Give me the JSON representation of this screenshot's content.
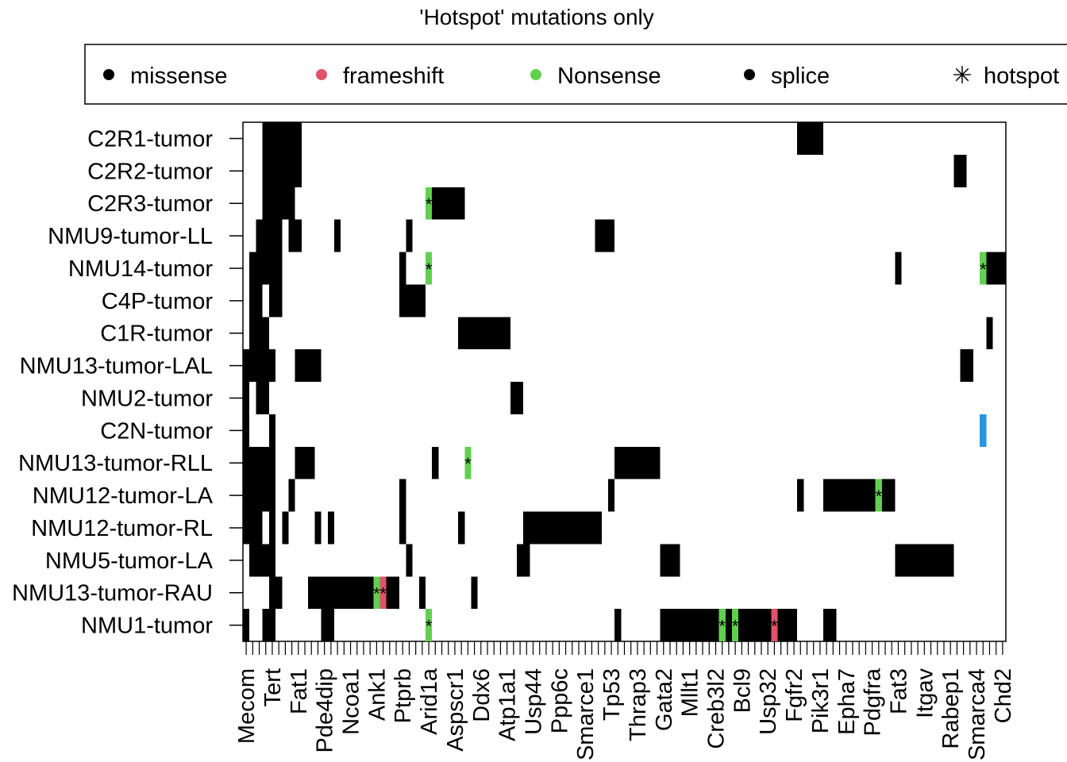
{
  "chart_data": {
    "type": "heatmap",
    "title": "'Hotspot' mutations only",
    "legend": {
      "placement": "top",
      "entries": [
        {
          "label": "missense",
          "symbol": "dot",
          "color": "#000000"
        },
        {
          "label": "frameshift",
          "symbol": "dot",
          "color": "#DF536B"
        },
        {
          "label": "Nonsense",
          "symbol": "dot",
          "color": "#61D04F"
        },
        {
          "label": "splice",
          "symbol": "dot",
          "color": "#000000"
        },
        {
          "label": "hotspot",
          "symbol": "asterisk",
          "color": "#000000"
        }
      ]
    },
    "colors": {
      "missense": "#000000",
      "frameshift": "#DF536B",
      "nonsense": "#61D04F",
      "splice": "#000000",
      "other": "#2297E6"
    },
    "samples": [
      "C2R1-tumor",
      "C2R2-tumor",
      "C2R3-tumor",
      "NMU9-tumor-LL",
      "NMU14-tumor",
      "C4P-tumor",
      "C1R-tumor",
      "NMU13-tumor-LAL",
      "NMU2-tumor",
      "C2N-tumor",
      "NMU13-tumor-RLL",
      "NMU12-tumor-LA",
      "NMU12-tumor-RL",
      "NMU5-tumor-LA",
      "NMU13-tumor-RAU",
      "NMU1-tumor"
    ],
    "gene_labels": [
      "Mecom",
      "Tert",
      "Fat1",
      "Pde4dip",
      "Ncoa1",
      "Ank1",
      "Ptprb",
      "Arid1a",
      "Aspscr1",
      "Ddx6",
      "Atp1a1",
      "Usp44",
      "Ppp6c",
      "Smarce1",
      "Tp53",
      "Thrap3",
      "Gata2",
      "Mllt1",
      "Creb3l2",
      "Bcl9",
      "Usp32",
      "Fgfr2",
      "Pik3r1",
      "Epha7",
      "Pdgfra",
      "Fat3",
      "Itgav",
      "Rabep1",
      "Smarca4",
      "Chd2"
    ],
    "n_genes": 117,
    "gene_label_every": 4,
    "mutations": [
      {
        "row": 0,
        "start": 3,
        "end": 8,
        "type": "missense"
      },
      {
        "row": 0,
        "start": 85,
        "end": 88,
        "type": "missense"
      },
      {
        "row": 1,
        "start": 3,
        "end": 8,
        "type": "missense"
      },
      {
        "row": 1,
        "start": 109,
        "end": 110,
        "type": "missense"
      },
      {
        "row": 2,
        "start": 3,
        "end": 7,
        "type": "missense"
      },
      {
        "row": 2,
        "start": 28,
        "end": 28,
        "type": "nonsense",
        "hotspot": true
      },
      {
        "row": 2,
        "start": 29,
        "end": 33,
        "type": "missense"
      },
      {
        "row": 3,
        "start": 2,
        "end": 5,
        "type": "missense"
      },
      {
        "row": 3,
        "start": 7,
        "end": 8,
        "type": "missense"
      },
      {
        "row": 3,
        "start": 14,
        "end": 14,
        "type": "missense"
      },
      {
        "row": 3,
        "start": 25,
        "end": 25,
        "type": "missense"
      },
      {
        "row": 3,
        "start": 54,
        "end": 56,
        "type": "missense"
      },
      {
        "row": 4,
        "start": 1,
        "end": 5,
        "type": "missense"
      },
      {
        "row": 4,
        "start": 24,
        "end": 24,
        "type": "missense"
      },
      {
        "row": 4,
        "start": 28,
        "end": 28,
        "type": "nonsense",
        "hotspot": true
      },
      {
        "row": 4,
        "start": 100,
        "end": 100,
        "type": "missense"
      },
      {
        "row": 4,
        "start": 113,
        "end": 113,
        "type": "nonsense",
        "hotspot": true
      },
      {
        "row": 4,
        "start": 114,
        "end": 116,
        "type": "missense"
      },
      {
        "row": 5,
        "start": 1,
        "end": 2,
        "type": "missense"
      },
      {
        "row": 5,
        "start": 4,
        "end": 5,
        "type": "missense"
      },
      {
        "row": 5,
        "start": 24,
        "end": 27,
        "type": "missense"
      },
      {
        "row": 6,
        "start": 1,
        "end": 3,
        "type": "missense"
      },
      {
        "row": 6,
        "start": 33,
        "end": 40,
        "type": "missense"
      },
      {
        "row": 6,
        "start": 114,
        "end": 114,
        "type": "missense"
      },
      {
        "row": 7,
        "start": 0,
        "end": 4,
        "type": "missense"
      },
      {
        "row": 7,
        "start": 8,
        "end": 11,
        "type": "missense"
      },
      {
        "row": 7,
        "start": 110,
        "end": 111,
        "type": "missense"
      },
      {
        "row": 8,
        "start": 0,
        "end": 0,
        "type": "missense"
      },
      {
        "row": 8,
        "start": 2,
        "end": 3,
        "type": "missense"
      },
      {
        "row": 8,
        "start": 41,
        "end": 42,
        "type": "missense"
      },
      {
        "row": 9,
        "start": 0,
        "end": 0,
        "type": "missense"
      },
      {
        "row": 9,
        "start": 4,
        "end": 4,
        "type": "missense"
      },
      {
        "row": 9,
        "start": 113,
        "end": 113,
        "type": "other"
      },
      {
        "row": 10,
        "start": 0,
        "end": 4,
        "type": "missense"
      },
      {
        "row": 10,
        "start": 8,
        "end": 10,
        "type": "missense"
      },
      {
        "row": 10,
        "start": 29,
        "end": 29,
        "type": "missense"
      },
      {
        "row": 10,
        "start": 34,
        "end": 34,
        "type": "nonsense",
        "hotspot": true
      },
      {
        "row": 10,
        "start": 57,
        "end": 63,
        "type": "missense"
      },
      {
        "row": 11,
        "start": 0,
        "end": 4,
        "type": "missense"
      },
      {
        "row": 11,
        "start": 7,
        "end": 7,
        "type": "missense"
      },
      {
        "row": 11,
        "start": 24,
        "end": 24,
        "type": "missense"
      },
      {
        "row": 11,
        "start": 56,
        "end": 56,
        "type": "missense"
      },
      {
        "row": 11,
        "start": 85,
        "end": 85,
        "type": "missense"
      },
      {
        "row": 11,
        "start": 89,
        "end": 96,
        "type": "missense"
      },
      {
        "row": 11,
        "start": 97,
        "end": 97,
        "type": "nonsense",
        "hotspot": true
      },
      {
        "row": 11,
        "start": 98,
        "end": 99,
        "type": "missense"
      },
      {
        "row": 12,
        "start": 0,
        "end": 2,
        "type": "missense"
      },
      {
        "row": 12,
        "start": 4,
        "end": 4,
        "type": "missense"
      },
      {
        "row": 12,
        "start": 6,
        "end": 6,
        "type": "missense"
      },
      {
        "row": 12,
        "start": 11,
        "end": 11,
        "type": "missense"
      },
      {
        "row": 12,
        "start": 13,
        "end": 13,
        "type": "missense"
      },
      {
        "row": 12,
        "start": 24,
        "end": 24,
        "type": "missense"
      },
      {
        "row": 12,
        "start": 33,
        "end": 33,
        "type": "missense"
      },
      {
        "row": 12,
        "start": 43,
        "end": 54,
        "type": "missense"
      },
      {
        "row": 13,
        "start": 1,
        "end": 4,
        "type": "missense"
      },
      {
        "row": 13,
        "start": 25,
        "end": 25,
        "type": "missense"
      },
      {
        "row": 13,
        "start": 42,
        "end": 43,
        "type": "missense"
      },
      {
        "row": 13,
        "start": 64,
        "end": 66,
        "type": "missense"
      },
      {
        "row": 13,
        "start": 100,
        "end": 108,
        "type": "missense"
      },
      {
        "row": 14,
        "start": 4,
        "end": 5,
        "type": "missense"
      },
      {
        "row": 14,
        "start": 10,
        "end": 19,
        "type": "missense"
      },
      {
        "row": 14,
        "start": 20,
        "end": 20,
        "type": "nonsense",
        "hotspot": true
      },
      {
        "row": 14,
        "start": 21,
        "end": 21,
        "type": "frameshift",
        "hotspot": true
      },
      {
        "row": 14,
        "start": 22,
        "end": 23,
        "type": "missense"
      },
      {
        "row": 14,
        "start": 27,
        "end": 27,
        "type": "missense"
      },
      {
        "row": 14,
        "start": 35,
        "end": 35,
        "type": "missense"
      },
      {
        "row": 15,
        "start": 0,
        "end": 0,
        "type": "missense"
      },
      {
        "row": 15,
        "start": 3,
        "end": 4,
        "type": "missense"
      },
      {
        "row": 15,
        "start": 12,
        "end": 13,
        "type": "missense"
      },
      {
        "row": 15,
        "start": 28,
        "end": 28,
        "type": "nonsense",
        "hotspot": true
      },
      {
        "row": 15,
        "start": 57,
        "end": 57,
        "type": "missense"
      },
      {
        "row": 15,
        "start": 64,
        "end": 72,
        "type": "missense"
      },
      {
        "row": 15,
        "start": 73,
        "end": 73,
        "type": "nonsense",
        "hotspot": true
      },
      {
        "row": 15,
        "start": 74,
        "end": 74,
        "type": "missense"
      },
      {
        "row": 15,
        "start": 75,
        "end": 75,
        "type": "nonsense",
        "hotspot": true
      },
      {
        "row": 15,
        "start": 76,
        "end": 80,
        "type": "missense"
      },
      {
        "row": 15,
        "start": 81,
        "end": 81,
        "type": "frameshift",
        "hotspot": true
      },
      {
        "row": 15,
        "start": 82,
        "end": 84,
        "type": "missense"
      },
      {
        "row": 15,
        "start": 89,
        "end": 90,
        "type": "missense"
      }
    ]
  }
}
